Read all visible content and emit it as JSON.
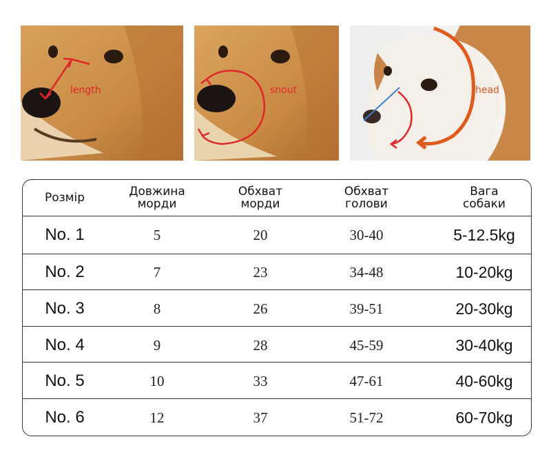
{
  "images": [
    {
      "label": "length",
      "label_color": "#e0252b"
    },
    {
      "label": "snout",
      "label_color": "#e0252b"
    },
    {
      "label": "head",
      "label_color": "#e05a1c",
      "line_color": "#3a7fd0"
    }
  ],
  "table": {
    "headers": {
      "size": "Розмір",
      "snout_length": [
        "Довжина",
        "морди"
      ],
      "snout_girth": [
        "Обхват",
        "морди"
      ],
      "head_girth": [
        "Обхват",
        "голови"
      ],
      "dog_weight": [
        "Вага",
        "собаки"
      ]
    },
    "rows": [
      {
        "size": "No. 1",
        "snout_length": "5",
        "snout_girth": "20",
        "head_girth": "30-40",
        "weight": "5-12.5kg"
      },
      {
        "size": "No. 2",
        "snout_length": "7",
        "snout_girth": "23",
        "head_girth": "34-48",
        "weight": "10-20kg"
      },
      {
        "size": "No. 3",
        "snout_length": "8",
        "snout_girth": "26",
        "head_girth": "39-51",
        "weight": "20-30kg"
      },
      {
        "size": "No. 4",
        "snout_length": "9",
        "snout_girth": "28",
        "head_girth": "45-59",
        "weight": "30-40kg"
      },
      {
        "size": "No. 5",
        "snout_length": "10",
        "snout_girth": "33",
        "head_girth": "47-61",
        "weight": "40-60kg"
      },
      {
        "size": "No. 6",
        "snout_length": "12",
        "snout_girth": "37",
        "head_girth": "51-72",
        "weight": "60-70kg"
      }
    ]
  }
}
